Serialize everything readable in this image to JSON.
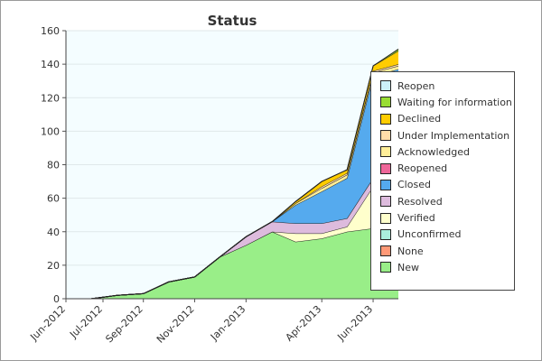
{
  "chart_data": {
    "type": "area",
    "stacked": true,
    "title": "Status",
    "xlabel": "",
    "ylabel": "",
    "ylim": [
      0,
      160
    ],
    "y_ticks": [
      0,
      20,
      40,
      60,
      80,
      100,
      120,
      140,
      160
    ],
    "x_tick_labels": [
      "Jun-2012",
      "Jul-2012",
      "Sep-2012",
      "Nov-2012",
      "Jan-2013",
      "Apr-2013",
      "Jun-2013"
    ],
    "x_dates": [
      "2012-07-01",
      "2012-08-01",
      "2012-09-01",
      "2012-10-01",
      "2012-11-01",
      "2012-12-01",
      "2013-01-01",
      "2013-02-01",
      "2013-03-01",
      "2013-04-01",
      "2013-05-01",
      "2013-06-01",
      "2013-07-01"
    ],
    "legend_position": "right",
    "grid": "horizontal",
    "plot_background": "#f4fdff",
    "series": [
      {
        "name": "New",
        "color": "#99ee88",
        "values": [
          0,
          2,
          3,
          10,
          13,
          25,
          32,
          40,
          34,
          36,
          40,
          42,
          44
        ]
      },
      {
        "name": "None",
        "color": "#ff9977",
        "values": [
          0,
          0,
          0,
          0,
          0,
          0,
          0,
          0,
          0,
          0,
          0,
          0,
          0
        ]
      },
      {
        "name": "Unconfirmed",
        "color": "#aaeedd",
        "values": [
          0,
          0,
          0,
          0,
          0,
          0,
          0,
          0,
          0,
          0,
          0,
          0,
          0
        ]
      },
      {
        "name": "Verified",
        "color": "#ffffcc",
        "values": [
          0,
          0,
          0,
          0,
          0,
          0,
          0,
          0,
          5,
          3,
          3,
          25,
          28
        ]
      },
      {
        "name": "Resolved",
        "color": "#ddbbdd",
        "values": [
          0,
          0,
          0,
          0,
          0,
          0,
          5,
          6,
          6,
          6,
          5,
          5,
          6
        ]
      },
      {
        "name": "Closed",
        "color": "#55aaee",
        "values": [
          0,
          0,
          0,
          0,
          0,
          0,
          0,
          0,
          11,
          19,
          24,
          61,
          59
        ]
      },
      {
        "name": "Reopened",
        "color": "#ee6699",
        "values": [
          0,
          0,
          0,
          0,
          0,
          0,
          0,
          0,
          0,
          0,
          0,
          0,
          0
        ]
      },
      {
        "name": "Acknowledged",
        "color": "#ffee99",
        "values": [
          0,
          0,
          0,
          0,
          0,
          0,
          0,
          0,
          1,
          2,
          2,
          2,
          2
        ]
      },
      {
        "name": "Under Implementation",
        "color": "#ffddaa",
        "values": [
          0,
          0,
          0,
          0,
          0,
          0,
          0,
          0,
          0,
          1,
          1,
          1,
          1
        ]
      },
      {
        "name": "Declined",
        "color": "#ffcc00",
        "values": [
          0,
          0,
          0,
          0,
          0,
          0,
          0,
          0,
          1,
          3,
          2,
          3,
          8
        ]
      },
      {
        "name": "Waiting for information",
        "color": "#99dd33",
        "values": [
          0,
          0,
          0,
          0,
          0,
          0,
          0,
          0,
          0,
          0,
          0,
          0,
          1
        ]
      },
      {
        "name": "Reopen",
        "color": "#ccf0f8",
        "values": [
          0,
          0,
          0,
          0,
          0,
          0,
          0,
          0,
          0,
          0,
          0,
          0,
          0
        ]
      }
    ]
  }
}
